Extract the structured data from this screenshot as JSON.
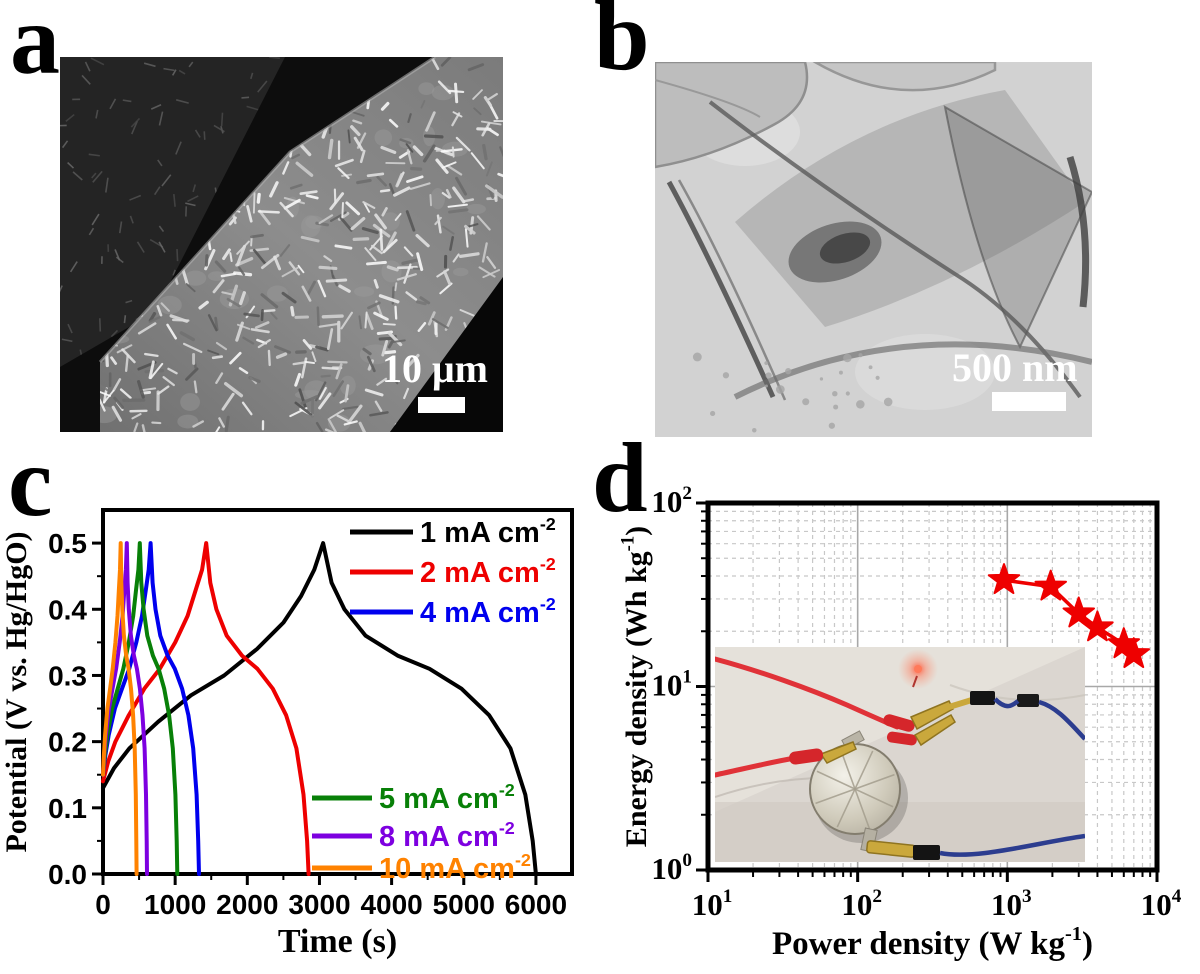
{
  "panels": {
    "a": {
      "label": "a",
      "scale_bar": "10 μm",
      "description": "SEM micrograph of nanosheet-covered fiber"
    },
    "b": {
      "label": "b",
      "scale_bar": "500 nm",
      "description": "TEM micrograph of thin sheets"
    },
    "c": {
      "label": "c"
    },
    "d": {
      "label": "d"
    }
  },
  "colors": {
    "series_black": "#000000",
    "series_red": "#ee0000",
    "series_blue": "#0000ee",
    "series_green": "#088008",
    "series_purple": "#7d00e0",
    "series_orange": "#ff8200",
    "star_red": "#ee0000",
    "grid_minor": "#c8c8c8",
    "grid_major": "#a8a8a8",
    "axis": "#000000"
  },
  "chart_data": [
    {
      "id": "gcd",
      "type": "line",
      "title": "",
      "xlabel": "Time (s)",
      "ylabel": "Potential (V vs. Hg/HgO)",
      "xlim": [
        0,
        6500
      ],
      "ylim": [
        0,
        0.55
      ],
      "xticks": [
        0,
        1000,
        2000,
        3000,
        4000,
        5000,
        6000
      ],
      "yticks": [
        0.0,
        0.1,
        0.2,
        0.3,
        0.4,
        0.5
      ],
      "x_minor_step": 500,
      "y_minor_step": 0.05,
      "grid": false,
      "legend_position": "inside top-right and inside bottom-right",
      "series": [
        {
          "name": "1 mA cm⁻²",
          "label_base": "1 mA cm",
          "label_exp": "-2",
          "color": "#000000",
          "points": [
            [
              0,
              0.13
            ],
            [
              153,
              0.16
            ],
            [
              366,
              0.19
            ],
            [
              763,
              0.23
            ],
            [
              1220,
              0.27
            ],
            [
              1678,
              0.3
            ],
            [
              2135,
              0.34
            ],
            [
              2501,
              0.38
            ],
            [
              2745,
              0.42
            ],
            [
              2928,
              0.46
            ],
            [
              3050,
              0.5
            ],
            [
              3168,
              0.44
            ],
            [
              3345,
              0.4
            ],
            [
              3640,
              0.36
            ],
            [
              4083,
              0.33
            ],
            [
              4525,
              0.31
            ],
            [
              4968,
              0.28
            ],
            [
              5351,
              0.24
            ],
            [
              5646,
              0.19
            ],
            [
              5853,
              0.12
            ],
            [
              5956,
              0.05
            ],
            [
              6000,
              0.0
            ]
          ]
        },
        {
          "name": "2 mA cm⁻²",
          "label_base": "2 mA cm",
          "label_exp": "-2",
          "color": "#ee0000",
          "points": [
            [
              0,
              0.14
            ],
            [
              72,
              0.17
            ],
            [
              172,
              0.2
            ],
            [
              358,
              0.24
            ],
            [
              572,
              0.28
            ],
            [
              787,
              0.31
            ],
            [
              1001,
              0.35
            ],
            [
              1173,
              0.39
            ],
            [
              1287,
              0.43
            ],
            [
              1373,
              0.46
            ],
            [
              1430,
              0.5
            ],
            [
              1487,
              0.44
            ],
            [
              1572,
              0.4
            ],
            [
              1714,
              0.36
            ],
            [
              1927,
              0.33
            ],
            [
              2140,
              0.31
            ],
            [
              2353,
              0.28
            ],
            [
              2538,
              0.24
            ],
            [
              2680,
              0.19
            ],
            [
              2779,
              0.12
            ],
            [
              2829,
              0.05
            ],
            [
              2850,
              0.0
            ]
          ]
        },
        {
          "name": "4 mA cm⁻²",
          "label_base": "4 mA cm",
          "label_exp": "-2",
          "color": "#0000ee",
          "points": [
            [
              0,
              0.15
            ],
            [
              33,
              0.18
            ],
            [
              79,
              0.21
            ],
            [
              165,
              0.25
            ],
            [
              264,
              0.28
            ],
            [
              363,
              0.31
            ],
            [
              462,
              0.35
            ],
            [
              541,
              0.39
            ],
            [
              594,
              0.43
            ],
            [
              634,
              0.46
            ],
            [
              660,
              0.5
            ],
            [
              687,
              0.44
            ],
            [
              727,
              0.4
            ],
            [
              794,
              0.36
            ],
            [
              895,
              0.33
            ],
            [
              995,
              0.31
            ],
            [
              1096,
              0.28
            ],
            [
              1183,
              0.24
            ],
            [
              1250,
              0.19
            ],
            [
              1297,
              0.12
            ],
            [
              1320,
              0.05
            ],
            [
              1330,
              0.0
            ]
          ]
        },
        {
          "name": "5 mA cm⁻²",
          "label_base": "5 mA cm",
          "label_exp": "-2",
          "color": "#088008",
          "points": [
            [
              0,
              0.15
            ],
            [
              26,
              0.18
            ],
            [
              61,
              0.21
            ],
            [
              128,
              0.25
            ],
            [
              204,
              0.28
            ],
            [
              281,
              0.31
            ],
            [
              357,
              0.35
            ],
            [
              418,
              0.39
            ],
            [
              459,
              0.43
            ],
            [
              490,
              0.46
            ],
            [
              510,
              0.5
            ],
            [
              531,
              0.44
            ],
            [
              562,
              0.4
            ],
            [
              614,
              0.36
            ],
            [
              692,
              0.33
            ],
            [
              770,
              0.31
            ],
            [
              848,
              0.28
            ],
            [
              916,
              0.24
            ],
            [
              968,
              0.19
            ],
            [
              1004,
              0.12
            ],
            [
              1022,
              0.05
            ],
            [
              1030,
              0.0
            ]
          ]
        },
        {
          "name": "8 mA cm⁻²",
          "label_base": "8 mA cm",
          "label_exp": "-2",
          "color": "#7d00e0",
          "points": [
            [
              0,
              0.15
            ],
            [
              17,
              0.18
            ],
            [
              40,
              0.21
            ],
            [
              83,
              0.25
            ],
            [
              132,
              0.28
            ],
            [
              182,
              0.31
            ],
            [
              231,
              0.35
            ],
            [
              271,
              0.39
            ],
            [
              297,
              0.43
            ],
            [
              317,
              0.46
            ],
            [
              330,
              0.5
            ],
            [
              341,
              0.44
            ],
            [
              358,
              0.4
            ],
            [
              386,
              0.36
            ],
            [
              428,
              0.33
            ],
            [
              470,
              0.31
            ],
            [
              512,
              0.28
            ],
            [
              548,
              0.24
            ],
            [
              576,
              0.19
            ],
            [
              596,
              0.12
            ],
            [
              606,
              0.05
            ],
            [
              610,
              0.0
            ]
          ]
        },
        {
          "name": "10 mA cm⁻²",
          "label_base": "10 mA cm",
          "label_exp": "-2",
          "color": "#ff8200",
          "points": [
            [
              0,
              0.15
            ],
            [
              12,
              0.18
            ],
            [
              29,
              0.21
            ],
            [
              61,
              0.25
            ],
            [
              98,
              0.28
            ],
            [
              135,
              0.31
            ],
            [
              172,
              0.35
            ],
            [
              201,
              0.39
            ],
            [
              221,
              0.43
            ],
            [
              235,
              0.46
            ],
            [
              245,
              0.5
            ],
            [
              254,
              0.44
            ],
            [
              267,
              0.4
            ],
            [
              289,
              0.36
            ],
            [
              322,
              0.33
            ],
            [
              355,
              0.31
            ],
            [
              388,
              0.28
            ],
            [
              417,
              0.24
            ],
            [
              439,
              0.19
            ],
            [
              454,
              0.12
            ],
            [
              462,
              0.05
            ],
            [
              465,
              0.0
            ]
          ]
        }
      ]
    },
    {
      "id": "ragone",
      "type": "scatter",
      "title": "",
      "xlabel_base": "Power density (W kg",
      "xlabel_exp": "-1",
      "xlabel_close": ")",
      "ylabel_base": "Energy density (Wh kg",
      "ylabel_exp": "-1",
      "ylabel_close": ")",
      "xscale": "log",
      "yscale": "log",
      "xlim": [
        10,
        10000
      ],
      "ylim": [
        1,
        100
      ],
      "xtick_exponents": [
        1,
        2,
        3,
        4
      ],
      "ytick_exponents": [
        0,
        1,
        2
      ],
      "grid": true,
      "marker": "star",
      "color": "#ee0000",
      "points": [
        [
          950,
          38
        ],
        [
          1950,
          35
        ],
        [
          3000,
          25
        ],
        [
          4000,
          21
        ],
        [
          6000,
          17
        ],
        [
          7000,
          15
        ]
      ]
    }
  ]
}
